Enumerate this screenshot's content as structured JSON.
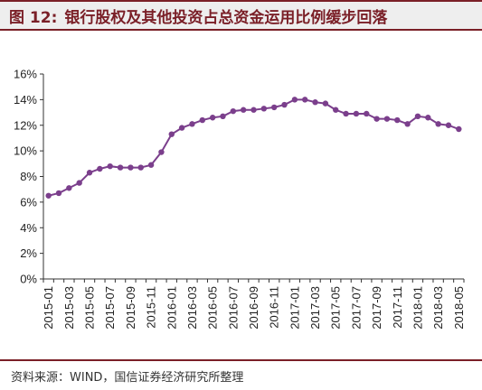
{
  "figure": {
    "number": "图 12:",
    "title": "银行股权及其他投资占总资金运用比例缓步回落"
  },
  "source": "资料来源：WIND，国信证券经济研究所整理",
  "colors": {
    "accent": "#7a1f27",
    "line": "#7b3f8c"
  },
  "chart_data": {
    "type": "line",
    "title": "银行股权及其他投资占总资金运用比例缓步回落",
    "xlabel": "",
    "ylabel": "",
    "ylim": [
      0,
      16
    ],
    "yticks": [
      "0%",
      "2%",
      "4%",
      "6%",
      "8%",
      "10%",
      "12%",
      "14%",
      "16%"
    ],
    "grid": false,
    "legend": "none",
    "x": [
      "2015-01",
      "2015-02",
      "2015-03",
      "2015-04",
      "2015-05",
      "2015-06",
      "2015-07",
      "2015-08",
      "2015-09",
      "2015-10",
      "2015-11",
      "2015-12",
      "2016-01",
      "2016-02",
      "2016-03",
      "2016-04",
      "2016-05",
      "2016-06",
      "2016-07",
      "2016-08",
      "2016-09",
      "2016-10",
      "2016-11",
      "2016-12",
      "2017-01",
      "2017-02",
      "2017-03",
      "2017-04",
      "2017-05",
      "2017-06",
      "2017-07",
      "2017-08",
      "2017-09",
      "2017-10",
      "2017-11",
      "2017-12",
      "2018-01",
      "2018-02",
      "2018-03",
      "2018-04",
      "2018-05"
    ],
    "xticks": [
      "2015-01",
      "2015-03",
      "2015-05",
      "2015-07",
      "2015-09",
      "2015-11",
      "2016-01",
      "2016-03",
      "2016-05",
      "2016-07",
      "2016-09",
      "2016-11",
      "2017-01",
      "2017-03",
      "2017-05",
      "2017-07",
      "2017-09",
      "2017-11",
      "2018-01",
      "2018-03",
      "2018-05"
    ],
    "series": [
      {
        "values": [
          6.5,
          6.7,
          7.1,
          7.5,
          8.3,
          8.6,
          8.8,
          8.7,
          8.7,
          8.7,
          8.9,
          9.9,
          11.3,
          11.8,
          12.1,
          12.4,
          12.6,
          12.7,
          13.1,
          13.2,
          13.2,
          13.3,
          13.4,
          13.6,
          14.0,
          14.0,
          13.8,
          13.7,
          13.2,
          12.9,
          12.9,
          12.9,
          12.5,
          12.5,
          12.4,
          12.1,
          12.7,
          12.6,
          12.1,
          12.0,
          11.7
        ]
      }
    ]
  }
}
